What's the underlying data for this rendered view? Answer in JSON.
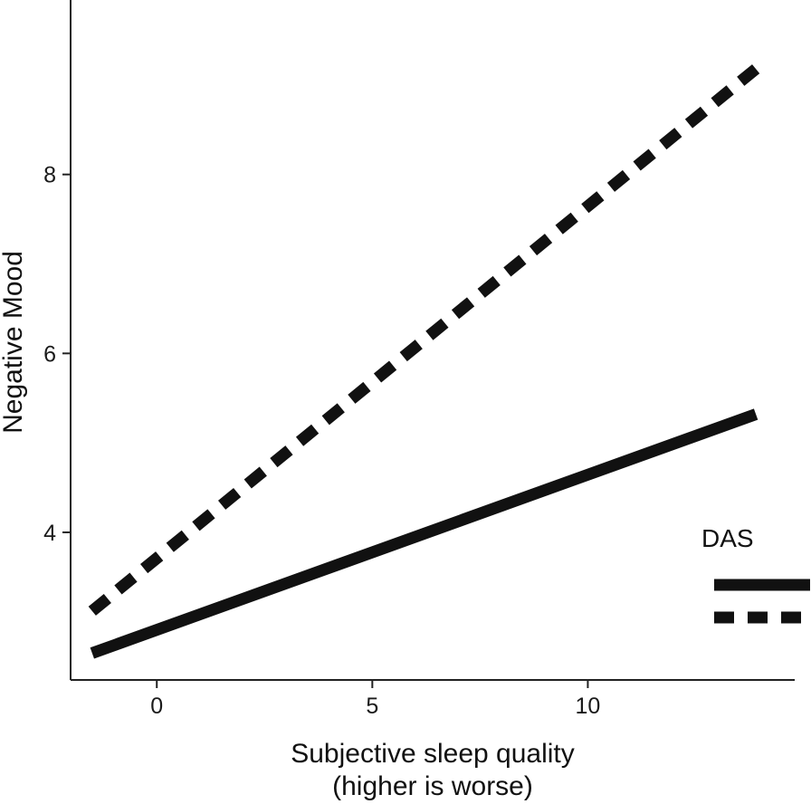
{
  "chart_data": {
    "type": "line",
    "title": "",
    "xlabel_line1": "Subjective sleep quality",
    "xlabel_line2": "(higher is worse)",
    "ylabel": "Negative Mood",
    "xlim": [
      -2.0,
      14.8
    ],
    "ylim": [
      2.35,
      9.95
    ],
    "xticks": [
      0,
      5,
      10
    ],
    "xtick_labels": [
      "0",
      "5",
      "10"
    ],
    "yticks": [
      4,
      6,
      8
    ],
    "ytick_labels": [
      "4",
      "6",
      "8"
    ],
    "grid": false,
    "legend": {
      "title": "DAS",
      "position": "right",
      "entry_styles": [
        "solid",
        "dashed"
      ]
    },
    "series": [
      {
        "style": "solid",
        "color": "#111111",
        "x": [
          -1.5,
          13.9
        ],
        "y": [
          2.65,
          5.32
        ]
      },
      {
        "style": "dashed",
        "color": "#111111",
        "x": [
          -1.5,
          13.9
        ],
        "y": [
          3.12,
          9.18
        ]
      }
    ]
  }
}
